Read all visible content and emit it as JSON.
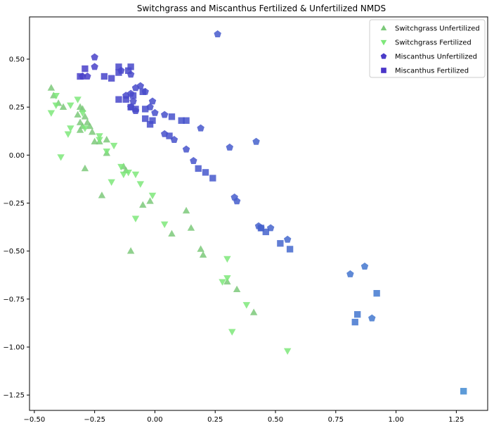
{
  "chart_data": {
    "type": "scatter",
    "title": "Switchgrass and Miscanthus Fertilized & Unfertilized NMDS",
    "xlabel": "",
    "ylabel": "",
    "xlim": [
      -0.52,
      1.38
    ],
    "ylim": [
      -1.33,
      0.72
    ],
    "xticks": [
      -0.5,
      -0.25,
      0.0,
      0.25,
      0.5,
      0.75,
      1.0,
      1.25
    ],
    "xtick_labels": [
      "−0.50",
      "−0.25",
      "0.00",
      "0.25",
      "0.50",
      "0.75",
      "1.00",
      "1.25"
    ],
    "yticks": [
      -1.25,
      -1.0,
      -0.75,
      -0.5,
      -0.25,
      0.0,
      0.25,
      0.5
    ],
    "ytick_labels": [
      "−1.25",
      "−1.00",
      "−0.75",
      "−0.50",
      "−0.25",
      "0.00",
      "0.25",
      "0.50"
    ],
    "grid": false,
    "legend_position": "top-right",
    "series": [
      {
        "name": "Switchgrass Unfertilized",
        "marker": "triangle-up",
        "color": "#7cc97a",
        "points": [
          [
            -0.43,
            0.35
          ],
          [
            -0.42,
            0.31
          ],
          [
            -0.4,
            0.27
          ],
          [
            -0.38,
            0.25
          ],
          [
            -0.31,
            0.25
          ],
          [
            -0.3,
            0.24
          ],
          [
            -0.32,
            0.21
          ],
          [
            -0.29,
            0.2
          ],
          [
            -0.31,
            0.17
          ],
          [
            -0.3,
            0.15
          ],
          [
            -0.28,
            0.17
          ],
          [
            -0.27,
            0.15
          ],
          [
            -0.31,
            0.13
          ],
          [
            -0.26,
            0.12
          ],
          [
            -0.25,
            0.07
          ],
          [
            -0.23,
            0.07
          ],
          [
            -0.2,
            0.08
          ],
          [
            -0.2,
            0.01
          ],
          [
            -0.29,
            -0.07
          ],
          [
            -0.13,
            -0.06
          ],
          [
            -0.12,
            -0.08
          ],
          [
            -0.22,
            -0.21
          ],
          [
            -0.02,
            -0.24
          ],
          [
            -0.05,
            -0.26
          ],
          [
            0.13,
            -0.29
          ],
          [
            0.07,
            -0.41
          ],
          [
            0.15,
            -0.38
          ],
          [
            -0.1,
            -0.5
          ],
          [
            0.19,
            -0.49
          ],
          [
            0.2,
            -0.52
          ],
          [
            0.3,
            -0.66
          ],
          [
            0.34,
            -0.7
          ],
          [
            0.41,
            -0.82
          ]
        ]
      },
      {
        "name": "Switchgrass Fertilized",
        "marker": "triangle-down",
        "color": "#7ee87a",
        "points": [
          [
            -0.41,
            0.31
          ],
          [
            -0.41,
            0.26
          ],
          [
            -0.43,
            0.22
          ],
          [
            -0.35,
            0.26
          ],
          [
            -0.32,
            0.29
          ],
          [
            -0.3,
            0.22
          ],
          [
            -0.35,
            0.14
          ],
          [
            -0.36,
            0.11
          ],
          [
            -0.29,
            0.14
          ],
          [
            -0.23,
            0.1
          ],
          [
            -0.23,
            0.08
          ],
          [
            -0.17,
            0.05
          ],
          [
            -0.2,
            0.02
          ],
          [
            -0.39,
            -0.01
          ],
          [
            -0.14,
            -0.06
          ],
          [
            -0.13,
            -0.1
          ],
          [
            -0.11,
            -0.09
          ],
          [
            -0.08,
            -0.1
          ],
          [
            -0.06,
            -0.15
          ],
          [
            -0.18,
            -0.14
          ],
          [
            -0.01,
            -0.21
          ],
          [
            0.04,
            -0.36
          ],
          [
            -0.08,
            -0.33
          ],
          [
            0.3,
            -0.54
          ],
          [
            0.28,
            -0.66
          ],
          [
            0.3,
            -0.64
          ],
          [
            0.38,
            -0.78
          ],
          [
            0.32,
            -0.92
          ],
          [
            0.55,
            -1.02
          ]
        ]
      },
      {
        "name": "Miscanthus Unfertilized",
        "marker": "pentagon",
        "color": "#4a3cc8",
        "points": [
          [
            0.26,
            0.63
          ],
          [
            -0.25,
            0.51
          ],
          [
            -0.25,
            0.46
          ],
          [
            -0.3,
            0.41
          ],
          [
            -0.28,
            0.41
          ],
          [
            -0.14,
            0.44
          ],
          [
            -0.1,
            0.42
          ],
          [
            -0.08,
            0.35
          ],
          [
            -0.06,
            0.36
          ],
          [
            -0.04,
            0.33
          ],
          [
            -0.1,
            0.32
          ],
          [
            -0.12,
            0.31
          ],
          [
            -0.09,
            0.28
          ],
          [
            -0.01,
            0.28
          ],
          [
            -0.1,
            0.25
          ],
          [
            -0.08,
            0.23
          ],
          [
            -0.02,
            0.25
          ],
          [
            0.0,
            0.22
          ],
          [
            0.04,
            0.21
          ],
          [
            0.19,
            0.14
          ],
          [
            0.04,
            0.11
          ],
          [
            0.08,
            0.08
          ],
          [
            0.31,
            0.04
          ],
          [
            0.42,
            0.07
          ],
          [
            0.13,
            0.03
          ],
          [
            0.16,
            -0.03
          ],
          [
            0.33,
            -0.22
          ],
          [
            0.34,
            -0.24
          ],
          [
            0.43,
            -0.37
          ],
          [
            0.44,
            -0.38
          ],
          [
            0.48,
            -0.38
          ],
          [
            0.55,
            -0.44
          ],
          [
            0.81,
            -0.62
          ],
          [
            0.87,
            -0.58
          ],
          [
            0.9,
            -0.85
          ]
        ]
      },
      {
        "name": "Miscanthus Fertilized",
        "marker": "square",
        "color": "#4a35c8",
        "points": [
          [
            -0.31,
            0.41
          ],
          [
            -0.29,
            0.45
          ],
          [
            -0.21,
            0.41
          ],
          [
            -0.18,
            0.4
          ],
          [
            -0.15,
            0.46
          ],
          [
            -0.15,
            0.43
          ],
          [
            -0.11,
            0.44
          ],
          [
            -0.1,
            0.46
          ],
          [
            -0.15,
            0.29
          ],
          [
            -0.12,
            0.29
          ],
          [
            -0.09,
            0.31
          ],
          [
            -0.05,
            0.33
          ],
          [
            -0.1,
            0.25
          ],
          [
            -0.08,
            0.24
          ],
          [
            -0.04,
            0.24
          ],
          [
            -0.04,
            0.19
          ],
          [
            -0.01,
            0.18
          ],
          [
            -0.02,
            0.16
          ],
          [
            0.07,
            0.2
          ],
          [
            0.11,
            0.18
          ],
          [
            0.13,
            0.18
          ],
          [
            0.06,
            0.1
          ],
          [
            0.18,
            -0.07
          ],
          [
            0.21,
            -0.09
          ],
          [
            0.24,
            -0.12
          ],
          [
            0.44,
            -0.38
          ],
          [
            0.46,
            -0.4
          ],
          [
            0.52,
            -0.46
          ],
          [
            0.56,
            -0.49
          ],
          [
            0.84,
            -0.83
          ],
          [
            0.83,
            -0.87
          ],
          [
            0.92,
            -0.72
          ],
          [
            1.28,
            -1.23
          ]
        ]
      }
    ]
  }
}
